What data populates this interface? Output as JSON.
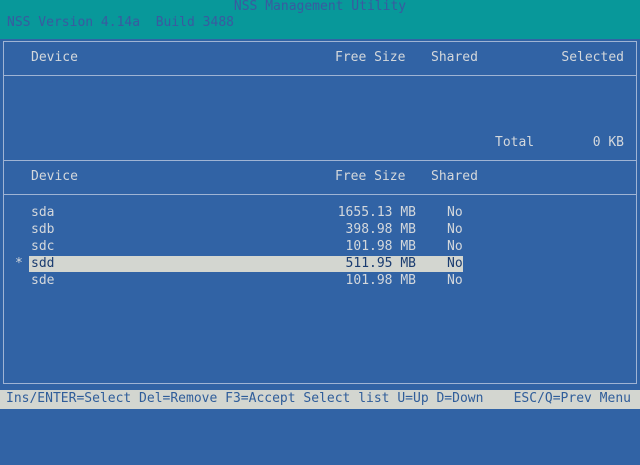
{
  "header": {
    "title": "NSS Management Utility",
    "version": "NSS Version 4.14a  Build 3488"
  },
  "selected_panel": {
    "columns": [
      "Device",
      "Free Size",
      "Shared",
      "Selected"
    ],
    "total_label": "Total",
    "total_value": "0 KB"
  },
  "device_panel": {
    "columns": [
      "Device",
      "Free Size",
      "Shared"
    ],
    "rows": [
      {
        "marker": "",
        "device": "sda",
        "free": "1655.13 MB",
        "shared": "No"
      },
      {
        "marker": "",
        "device": "sdb",
        "free": "398.98 MB",
        "shared": "No"
      },
      {
        "marker": "",
        "device": "sdc",
        "free": "101.98 MB",
        "shared": "No"
      },
      {
        "marker": "*",
        "device": "sdd",
        "free": "511.95 MB",
        "shared": "No",
        "highlighted": true
      },
      {
        "marker": "",
        "device": "sde",
        "free": "101.98 MB",
        "shared": "No"
      }
    ]
  },
  "footer": {
    "keys": "Ins/ENTER=Select Del=Remove F3=Accept Select list U=Up D=Down",
    "esc": "ESC/Q=Prev Menu"
  },
  "colors": {
    "background": "#3163a5",
    "header": "#08989a",
    "highlight": "#d3d6d0"
  }
}
